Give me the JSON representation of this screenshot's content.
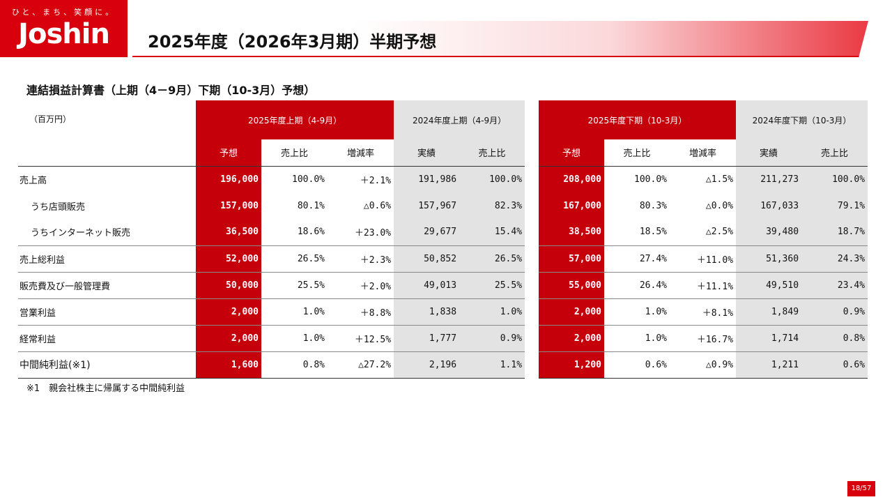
{
  "header": {
    "tagline": "ひと、まち、笑顔に。",
    "logo": "Joshin",
    "title": "2025年度（2026年3月期）半期予想"
  },
  "section_title": "連結損益計算書（上期（4－9月）下期（10-3月）予想）",
  "unit": "（百万円）",
  "left": {
    "group_forecast": "2025年度上期（4-9月）",
    "group_actual": "2024年度上期（4-9月）",
    "cols": [
      "予想",
      "売上比",
      "増減率",
      "実績",
      "売上比"
    ]
  },
  "right": {
    "group_forecast": "2025年度下期（10-3月）",
    "group_actual": "2024年度下期（10-3月）",
    "cols": [
      "予想",
      "売上比",
      "増減率",
      "実績",
      "売上比"
    ]
  },
  "rows": [
    {
      "label": "売上高",
      "h1": [
        "196,000",
        "100.0%",
        "＋2.1%",
        "191,986",
        "100.0%"
      ],
      "h2": [
        "208,000",
        "100.0%",
        "△1.5%",
        "211,273",
        "100.0%"
      ]
    },
    {
      "label": "うち店頭販売",
      "h1": [
        "157,000",
        "80.1%",
        "△0.6%",
        "157,967",
        "82.3%"
      ],
      "h2": [
        "167,000",
        "80.3%",
        "△0.0%",
        "167,033",
        "79.1%"
      ]
    },
    {
      "label": "うちインターネット販売",
      "h1": [
        "36,500",
        "18.6%",
        "＋23.0%",
        "29,677",
        "15.4%"
      ],
      "h2": [
        "38,500",
        "18.5%",
        "△2.5%",
        "39,480",
        "18.7%"
      ]
    },
    {
      "label": "売上総利益",
      "h1": [
        "52,000",
        "26.5%",
        "＋2.3%",
        "50,852",
        "26.5%"
      ],
      "h2": [
        "57,000",
        "27.4%",
        "＋11.0%",
        "51,360",
        "24.3%"
      ]
    },
    {
      "label": "販売費及び一般管理費",
      "h1": [
        "50,000",
        "25.5%",
        "＋2.0%",
        "49,013",
        "25.5%"
      ],
      "h2": [
        "55,000",
        "26.4%",
        "＋11.1%",
        "49,510",
        "23.4%"
      ]
    },
    {
      "label": "営業利益",
      "h1": [
        "2,000",
        "1.0%",
        "＋8.8%",
        "1,838",
        "1.0%"
      ],
      "h2": [
        "2,000",
        "1.0%",
        "＋8.1%",
        "1,849",
        "0.9%"
      ]
    },
    {
      "label": "経常利益",
      "h1": [
        "2,000",
        "1.0%",
        "＋12.5%",
        "1,777",
        "0.9%"
      ],
      "h2": [
        "2,000",
        "1.0%",
        "＋16.7%",
        "1,714",
        "0.8%"
      ]
    },
    {
      "label": "中間純利益(※1)",
      "h1": [
        "1,600",
        "0.8%",
        "△27.2%",
        "2,196",
        "1.1%"
      ],
      "h2": [
        "1,200",
        "0.6%",
        "△0.9%",
        "1,211",
        "0.6%"
      ]
    }
  ],
  "footnote": "※1　親会社株主に帰属する中間純利益",
  "page_number": "18/57",
  "colors": {
    "brand_red": "#d8000c",
    "cell_red": "#c5000b",
    "cell_grey": "#e3e3e3"
  }
}
